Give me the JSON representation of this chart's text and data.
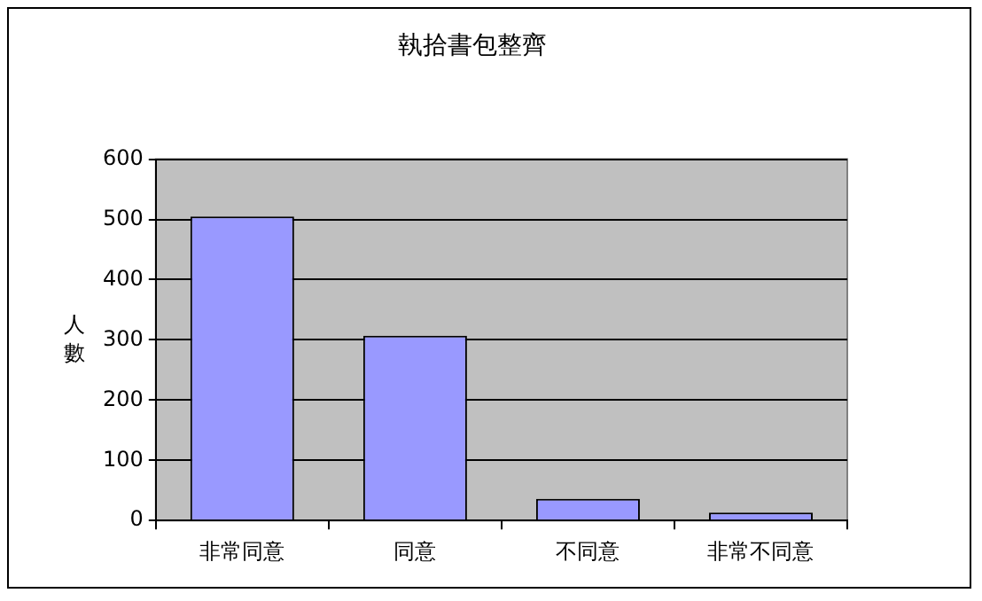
{
  "chart_data": {
    "type": "bar",
    "title": "執拾書包整齊",
    "ylabel": "人數",
    "categories": [
      "非常同意",
      "同意",
      "不同意",
      "非常不同意"
    ],
    "values": [
      505,
      307,
      36,
      13
    ],
    "color": "#9999ff",
    "ylim": [
      0,
      600
    ],
    "yticks": [
      0,
      100,
      200,
      300,
      400,
      500,
      600
    ],
    "grid": "y"
  }
}
